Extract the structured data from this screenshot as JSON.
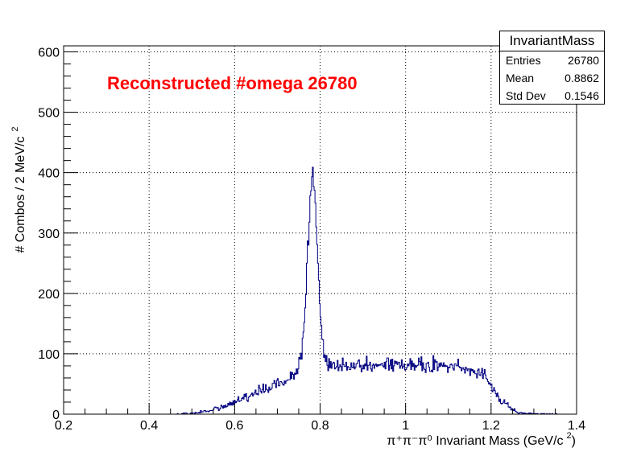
{
  "chart_data": {
    "type": "histogram",
    "title": "",
    "annotation": "Reconstructed #omega 26780",
    "annotation_color": "#ff0000",
    "line_color": "#000080",
    "xlabel": "π⁺π⁻π⁰ Invariant Mass (GeV/c",
    "xlabel_superscript": "2",
    "xlabel_suffix": ")",
    "ylabel": "# Combos / 2 MeV/c",
    "ylabel_superscript": "2",
    "xlim": [
      0.2,
      1.4
    ],
    "ylim": [
      0,
      610
    ],
    "xticks": [
      "0.2",
      "0.4",
      "0.6",
      "0.8",
      "1",
      "1.2",
      "1.4"
    ],
    "xtick_values": [
      0.2,
      0.4,
      0.6,
      0.8,
      1.0,
      1.2,
      1.4
    ],
    "yticks": [
      "0",
      "100",
      "200",
      "300",
      "400",
      "500",
      "600"
    ],
    "ytick_values": [
      0,
      100,
      200,
      300,
      400,
      500,
      600
    ],
    "grid": true,
    "bin_width": 0.002,
    "bin_start": 0.2,
    "profile": [
      [
        0.46,
        0
      ],
      [
        0.48,
        0.5
      ],
      [
        0.5,
        1.5
      ],
      [
        0.52,
        3
      ],
      [
        0.54,
        6
      ],
      [
        0.56,
        9
      ],
      [
        0.58,
        14
      ],
      [
        0.6,
        20
      ],
      [
        0.62,
        27
      ],
      [
        0.64,
        33
      ],
      [
        0.66,
        38
      ],
      [
        0.68,
        44
      ],
      [
        0.7,
        50
      ],
      [
        0.72,
        57
      ],
      [
        0.74,
        68
      ],
      [
        0.75,
        80
      ],
      [
        0.76,
        115
      ],
      [
        0.765,
        175
      ],
      [
        0.77,
        250
      ],
      [
        0.775,
        330
      ],
      [
        0.78,
        375
      ],
      [
        0.784,
        392
      ],
      [
        0.788,
        375
      ],
      [
        0.792,
        320
      ],
      [
        0.796,
        240
      ],
      [
        0.8,
        170
      ],
      [
        0.805,
        120
      ],
      [
        0.81,
        95
      ],
      [
        0.82,
        80
      ],
      [
        0.85,
        78
      ],
      [
        0.9,
        80
      ],
      [
        0.95,
        82
      ],
      [
        1.0,
        84
      ],
      [
        1.05,
        82
      ],
      [
        1.1,
        78
      ],
      [
        1.15,
        72
      ],
      [
        1.18,
        66
      ],
      [
        1.2,
        52
      ],
      [
        1.22,
        25
      ],
      [
        1.24,
        12
      ],
      [
        1.26,
        5
      ],
      [
        1.28,
        2
      ],
      [
        1.3,
        0.8
      ],
      [
        1.34,
        0.3
      ],
      [
        1.36,
        0
      ]
    ],
    "seed": 26780,
    "peak_position": 0.784
  },
  "stats": {
    "title": "InvariantMass",
    "rows": [
      {
        "key": "Entries",
        "value": "26780"
      },
      {
        "key": "Mean",
        "value": "0.8862"
      },
      {
        "key": "Std Dev",
        "value": "0.1546"
      }
    ]
  }
}
